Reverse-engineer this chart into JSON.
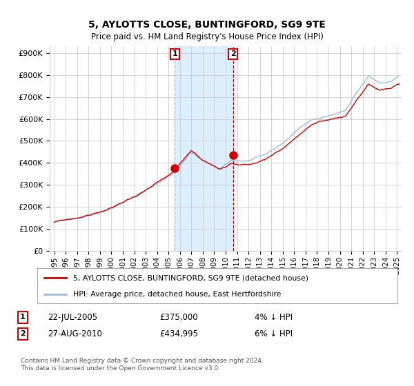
{
  "title1": "5, AYLOTTS CLOSE, BUNTINGFORD, SG9 9TE",
  "title2": "Price paid vs. HM Land Registry's House Price Index (HPI)",
  "ylabel_ticks": [
    "£0",
    "£100K",
    "£200K",
    "£300K",
    "£400K",
    "£500K",
    "£600K",
    "£700K",
    "£800K",
    "£900K"
  ],
  "ytick_values": [
    0,
    100000,
    200000,
    300000,
    400000,
    500000,
    600000,
    700000,
    800000,
    900000
  ],
  "ylim": [
    0,
    930000
  ],
  "xlim_start": 1994.6,
  "xlim_end": 2025.4,
  "marker1_x": 2005.55,
  "marker1_y": 375000,
  "marker2_x": 2010.65,
  "marker2_y": 434995,
  "red_line_color": "#cc0000",
  "blue_line_color": "#99bbdd",
  "shade_color": "#ddeeff",
  "legend_label_red": "5, AYLOTTS CLOSE, BUNTINGFORD, SG9 9TE (detached house)",
  "legend_label_blue": "HPI: Average price, detached house, East Hertfordshire",
  "annotation1_label": "1",
  "annotation2_label": "2",
  "footer": "Contains HM Land Registry data © Crown copyright and database right 2024.\nThis data is licensed under the Open Government Licence v3.0.",
  "background_color": "#ffffff",
  "grid_color": "#cccccc",
  "xtick_years": [
    1995,
    1996,
    1997,
    1998,
    1999,
    2000,
    2001,
    2002,
    2003,
    2004,
    2005,
    2006,
    2007,
    2008,
    2009,
    2010,
    2011,
    2012,
    2013,
    2014,
    2015,
    2016,
    2017,
    2018,
    2019,
    2020,
    2021,
    2022,
    2023,
    2024,
    2025
  ]
}
